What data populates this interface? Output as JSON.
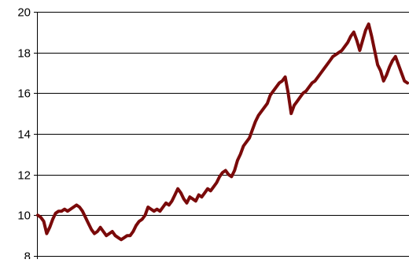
{
  "chart_data": {
    "type": "line",
    "title": "",
    "xlabel": "",
    "ylabel": "",
    "ylim": [
      8,
      20
    ],
    "yticks": [
      "8",
      "10",
      "12",
      "14",
      "16",
      "18",
      "20"
    ],
    "grid": true,
    "legend": "none",
    "colors": {
      "line": "#7a0a0a",
      "grid": "#000000",
      "axis": "#000000",
      "background": "#ffffff"
    },
    "series": [
      {
        "values": [
          10.0,
          9.9,
          9.7,
          9.1,
          9.4,
          9.8,
          10.1,
          10.2,
          10.2,
          10.3,
          10.2,
          10.3,
          10.4,
          10.5,
          10.4,
          10.2,
          9.9,
          9.6,
          9.3,
          9.1,
          9.2,
          9.4,
          9.2,
          9.0,
          9.1,
          9.2,
          9.0,
          8.9,
          8.8,
          8.9,
          9.0,
          9.0,
          9.2,
          9.5,
          9.7,
          9.8,
          10.0,
          10.4,
          10.3,
          10.2,
          10.3,
          10.2,
          10.4,
          10.6,
          10.5,
          10.7,
          11.0,
          11.3,
          11.1,
          10.8,
          10.6,
          10.9,
          10.8,
          10.7,
          11.0,
          10.9,
          11.1,
          11.3,
          11.2,
          11.4,
          11.6,
          11.9,
          12.1,
          12.2,
          12.0,
          11.9,
          12.2,
          12.7,
          13.0,
          13.4,
          13.6,
          13.8,
          14.2,
          14.6,
          14.9,
          15.1,
          15.3,
          15.5,
          15.9,
          16.1,
          16.3,
          16.5,
          16.6,
          16.8,
          16.0,
          15.0,
          15.4,
          15.6,
          15.8,
          16.0,
          16.1,
          16.3,
          16.5,
          16.6,
          16.8,
          17.0,
          17.2,
          17.4,
          17.6,
          17.8,
          17.9,
          18.0,
          18.1,
          18.3,
          18.5,
          18.8,
          19.0,
          18.6,
          18.1,
          18.6,
          19.1,
          19.4,
          18.8,
          18.1,
          17.4,
          17.1,
          16.6,
          16.9,
          17.3,
          17.6,
          17.8,
          17.4,
          17.0,
          16.6,
          16.5
        ]
      }
    ]
  }
}
